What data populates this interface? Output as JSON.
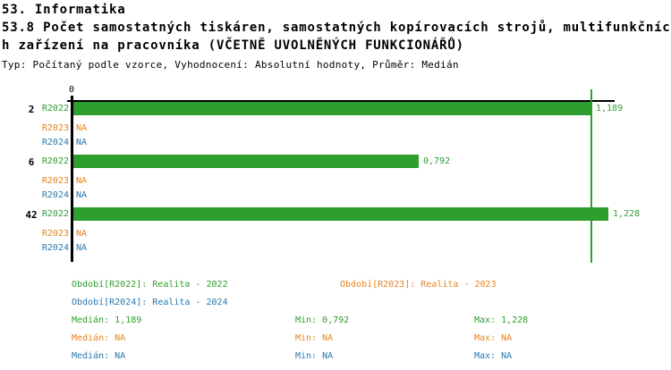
{
  "header": {
    "line1": "53. Informatika",
    "line2": "53.8 Počet samostatných tiskáren, samostatných kopírovacích strojů, multifunkčníc",
    "line3": "h zařízení na pracovníka (VČETNĚ UVOLNĚNÝCH FUNKCIONÁŘŮ)",
    "meta": "Typ: Počítaný podle vzorce, Vyhodnocení: Absolutní hodnoty, Průměr: Medián"
  },
  "colors": {
    "series": {
      "R2022": "#2E9E2E",
      "R2023": "#E8821E",
      "R2024": "#2878B0"
    },
    "axis": "#000000",
    "median_line": "#2E9E2E",
    "background": "#FFFFFF"
  },
  "chart_data": {
    "type": "bar",
    "orientation": "horizontal",
    "categories": [
      "2",
      "6",
      "42"
    ],
    "series_labels": [
      "R2022",
      "R2023",
      "R2024"
    ],
    "axis": {
      "origin_label": "0",
      "xmin": 0,
      "xlim": [
        0,
        1.24
      ],
      "median_line_value": 1.189,
      "grid": false
    },
    "groups": [
      {
        "category": "2",
        "bars": [
          {
            "series": "R2022",
            "value": 1.189,
            "label": "1,189"
          },
          {
            "series": "R2023",
            "value": null,
            "label": "NA"
          },
          {
            "series": "R2024",
            "value": null,
            "label": "NA"
          }
        ]
      },
      {
        "category": "6",
        "bars": [
          {
            "series": "R2022",
            "value": 0.792,
            "label": "0,792"
          },
          {
            "series": "R2023",
            "value": null,
            "label": "NA"
          },
          {
            "series": "R2024",
            "value": null,
            "label": "NA"
          }
        ]
      },
      {
        "category": "42",
        "bars": [
          {
            "series": "R2022",
            "value": 1.228,
            "label": "1,228"
          },
          {
            "series": "R2023",
            "value": null,
            "label": "NA"
          },
          {
            "series": "R2024",
            "value": null,
            "label": "NA"
          }
        ]
      }
    ]
  },
  "legend": {
    "items": [
      {
        "series": "R2022",
        "text": "Období[R2022]: Realita - 2022"
      },
      {
        "series": "R2023",
        "text": "Období[R2023]: Realita - 2023"
      },
      {
        "series": "R2024",
        "text": "Období[R2024]: Realita - 2024"
      }
    ]
  },
  "stats": {
    "rows": [
      {
        "series": "R2022",
        "median": "Medián: 1,189",
        "min": "Min: 0,792",
        "max": "Max: 1,228"
      },
      {
        "series": "R2023",
        "median": "Medián: NA",
        "min": "Min: NA",
        "max": "Max: NA"
      },
      {
        "series": "R2024",
        "median": "Medián: NA",
        "min": "Min: NA",
        "max": "Max: NA"
      }
    ]
  }
}
